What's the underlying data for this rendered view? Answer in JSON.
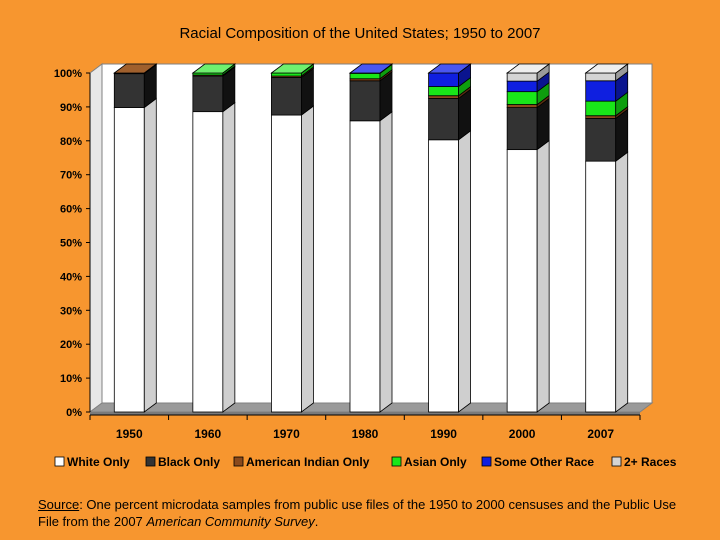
{
  "chart_data": {
    "type": "bar",
    "stacked": true,
    "style": "3d",
    "title": "Racial Composition of the United States; 1950 to 2007",
    "xlabel": "",
    "ylabel": "",
    "ylim": [
      0,
      100
    ],
    "y_ticks": [
      "0%",
      "10%",
      "20%",
      "30%",
      "40%",
      "50%",
      "60%",
      "70%",
      "80%",
      "90%",
      "100%"
    ],
    "categories": [
      "1950",
      "1960",
      "1970",
      "1980",
      "1990",
      "2000",
      "2007"
    ],
    "series": [
      {
        "name": "White Only",
        "color": "#ffffff",
        "side": "#cfcfcf",
        "top": "#ffffff",
        "values": [
          89.8,
          88.6,
          87.6,
          85.9,
          80.3,
          77.4,
          74.0
        ]
      },
      {
        "name": "Black Only",
        "color": "#333333",
        "side": "#111111",
        "top": "#555555",
        "values": [
          10.0,
          10.5,
          11.1,
          11.8,
          12.2,
          12.4,
          12.6
        ]
      },
      {
        "name": "American Indian Only",
        "color": "#8b4a1c",
        "side": "#5a2e10",
        "top": "#a0602d",
        "values": [
          0.2,
          0.3,
          0.4,
          0.6,
          0.8,
          0.9,
          0.8
        ]
      },
      {
        "name": "Asian Only",
        "color": "#19e619",
        "side": "#0e9e0e",
        "top": "#6ff06f",
        "values": [
          0.0,
          0.6,
          0.9,
          1.6,
          2.7,
          3.8,
          4.3
        ]
      },
      {
        "name": "Some Other Race",
        "color": "#0f1fe0",
        "side": "#0a148f",
        "top": "#4a57f0",
        "values": [
          0.0,
          0.0,
          0.0,
          0.1,
          4.0,
          3.1,
          6.0
        ]
      },
      {
        "name": "2+ Races",
        "color": "#d4d4d4",
        "side": "#9a9a9a",
        "top": "#eeeeee",
        "values": [
          0.0,
          0.0,
          0.0,
          0.0,
          0.0,
          2.4,
          2.3
        ]
      }
    ],
    "legend_position": "bottom",
    "grid": false,
    "plot_background": "#ffffff",
    "floor_color": "#9a9a9a"
  },
  "source_note": {
    "label": "Source",
    "text_before": ":  One percent microdata samples from public use files of the 1950 to 2000 censuses and the Public Use File from the 2007 ",
    "italic": "American Community Survey",
    "text_after": "."
  }
}
